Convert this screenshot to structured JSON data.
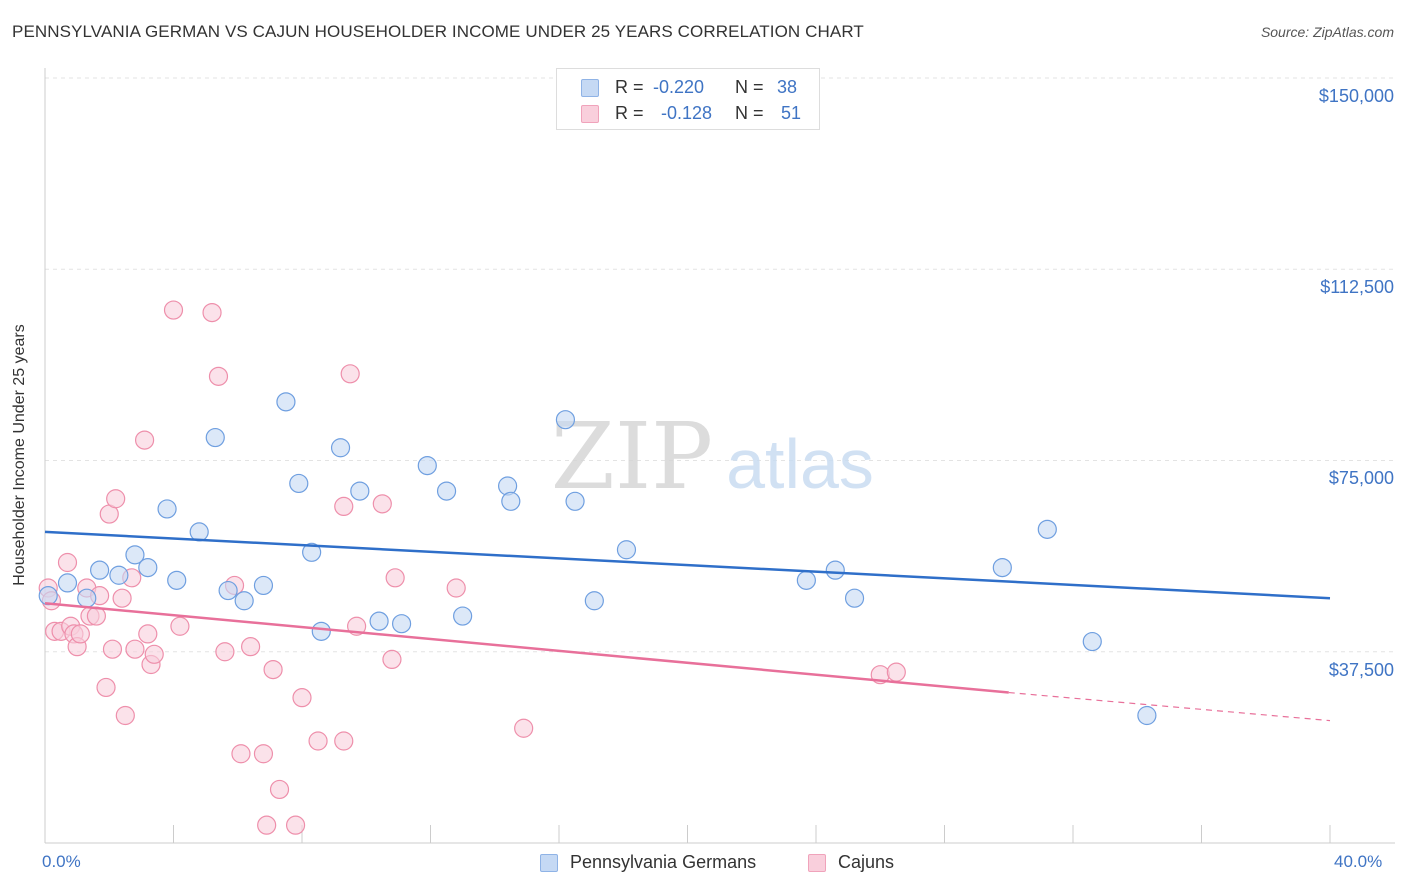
{
  "title": "PENNSYLVANIA GERMAN VS CAJUN HOUSEHOLDER INCOME UNDER 25 YEARS CORRELATION CHART",
  "source": "Source: ZipAtlas.com",
  "watermark": {
    "zip": "ZIP",
    "atlas": "atlas"
  },
  "legend": {
    "rows": [
      {
        "r_label": "R =",
        "r_value": "-0.220",
        "n_label": "N =",
        "n_value": "38",
        "color": "#a9c7ef"
      },
      {
        "r_label": "R =",
        "r_value": "-0.128",
        "n_label": "N =",
        "n_value": "51",
        "color": "#f7b8ca"
      }
    ]
  },
  "bottom_legend": [
    {
      "label": "Pennsylvania Germans",
      "color": "#a9c7ef"
    },
    {
      "label": "Cajuns",
      "color": "#f7b8ca"
    }
  ],
  "chart_data": {
    "type": "scatter",
    "title": "PENNSYLVANIA GERMAN VS CAJUN HOUSEHOLDER INCOME UNDER 25 YEARS CORRELATION CHART",
    "xlabel": "",
    "ylabel": "Householder Income Under 25 years",
    "xlim": [
      0,
      40
    ],
    "ylim": [
      0,
      150000
    ],
    "x_tick_labels": [
      "0.0%",
      "40.0%"
    ],
    "y_ticks": [
      37500,
      75000,
      112500,
      150000
    ],
    "y_tick_labels": [
      "$37,500",
      "$75,000",
      "$112,500",
      "$150,000"
    ],
    "grid": true,
    "series": [
      {
        "name": "Pennsylvania Germans",
        "color": "#6f9fe0",
        "fill": "#c5d9f4",
        "trend": {
          "x": [
            0,
            40
          ],
          "y": [
            61000,
            48000
          ],
          "color": "#2f6fc9"
        },
        "points": [
          [
            0.1,
            48500
          ],
          [
            0.7,
            51000
          ],
          [
            1.3,
            48000
          ],
          [
            1.7,
            53500
          ],
          [
            2.3,
            52500
          ],
          [
            2.8,
            56500
          ],
          [
            3.2,
            54000
          ],
          [
            3.8,
            65500
          ],
          [
            4.1,
            51500
          ],
          [
            4.8,
            61000
          ],
          [
            5.3,
            79500
          ],
          [
            5.7,
            49500
          ],
          [
            6.2,
            47500
          ],
          [
            6.8,
            50500
          ],
          [
            7.5,
            86500
          ],
          [
            7.9,
            70500
          ],
          [
            8.3,
            57000
          ],
          [
            8.6,
            41500
          ],
          [
            9.2,
            77500
          ],
          [
            9.8,
            69000
          ],
          [
            10.4,
            43500
          ],
          [
            11.1,
            43000
          ],
          [
            11.9,
            74000
          ],
          [
            12.5,
            69000
          ],
          [
            13.0,
            44500
          ],
          [
            14.4,
            70000
          ],
          [
            14.5,
            67000
          ],
          [
            16.2,
            83000
          ],
          [
            16.5,
            67000
          ],
          [
            17.1,
            47500
          ],
          [
            18.1,
            57500
          ],
          [
            23.7,
            51500
          ],
          [
            24.6,
            53500
          ],
          [
            25.2,
            48000
          ],
          [
            29.8,
            54000
          ],
          [
            31.2,
            61500
          ],
          [
            32.6,
            39500
          ],
          [
            34.3,
            25000
          ]
        ]
      },
      {
        "name": "Cajuns",
        "color": "#ee8fab",
        "fill": "#f9cfdc",
        "trend": {
          "x": [
            0,
            30
          ],
          "y": [
            47000,
            29500
          ],
          "color": "#e8709a"
        },
        "trend_dashed": {
          "x": [
            30,
            40
          ],
          "y": [
            29500,
            24000
          ]
        },
        "points": [
          [
            0.1,
            50000
          ],
          [
            0.2,
            47500
          ],
          [
            0.3,
            41500
          ],
          [
            0.5,
            41500
          ],
          [
            0.7,
            55000
          ],
          [
            0.8,
            42500
          ],
          [
            0.9,
            41000
          ],
          [
            1.0,
            38500
          ],
          [
            1.1,
            41000
          ],
          [
            1.3,
            50000
          ],
          [
            1.4,
            44500
          ],
          [
            1.6,
            44500
          ],
          [
            1.7,
            48500
          ],
          [
            1.9,
            30500
          ],
          [
            2.0,
            64500
          ],
          [
            2.1,
            38000
          ],
          [
            2.2,
            67500
          ],
          [
            2.4,
            48000
          ],
          [
            2.5,
            25000
          ],
          [
            2.7,
            52000
          ],
          [
            2.8,
            38000
          ],
          [
            3.1,
            79000
          ],
          [
            3.2,
            41000
          ],
          [
            3.3,
            35000
          ],
          [
            3.4,
            37000
          ],
          [
            4.0,
            104500
          ],
          [
            4.2,
            42500
          ],
          [
            5.2,
            104000
          ],
          [
            5.4,
            91500
          ],
          [
            5.6,
            37500
          ],
          [
            5.9,
            50500
          ],
          [
            6.1,
            17500
          ],
          [
            6.4,
            38500
          ],
          [
            6.8,
            17500
          ],
          [
            6.9,
            3500
          ],
          [
            7.1,
            34000
          ],
          [
            7.3,
            10500
          ],
          [
            7.8,
            3500
          ],
          [
            8.0,
            28500
          ],
          [
            8.5,
            20000
          ],
          [
            9.3,
            66000
          ],
          [
            9.3,
            20000
          ],
          [
            9.5,
            92000
          ],
          [
            9.7,
            42500
          ],
          [
            10.5,
            66500
          ],
          [
            10.8,
            36000
          ],
          [
            10.9,
            52000
          ],
          [
            12.8,
            50000
          ],
          [
            14.9,
            22500
          ],
          [
            26.0,
            33000
          ],
          [
            26.5,
            33500
          ]
        ]
      }
    ]
  }
}
